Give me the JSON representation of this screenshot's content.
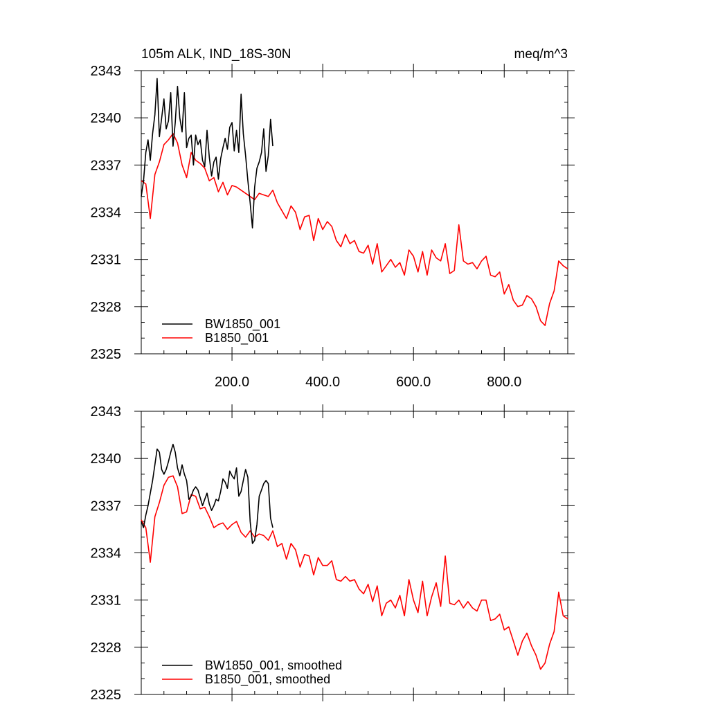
{
  "chart_data": [
    {
      "type": "line",
      "title_left": "105m ALK, IND_18S-30N",
      "title_right": "meq/m^3",
      "xlabel": "",
      "ylabel": "",
      "xlim": [
        0,
        940
      ],
      "ylim": [
        2325,
        2343
      ],
      "x_ticks": [
        200,
        400,
        600,
        800
      ],
      "x_tick_labels": [
        "200.0",
        "400.0",
        "600.0",
        "800.0"
      ],
      "y_ticks": [
        2325,
        2328,
        2331,
        2334,
        2337,
        2340,
        2343
      ],
      "y_tick_labels": [
        "2325",
        "2328",
        "2331",
        "2334",
        "2337",
        "2340",
        "2343"
      ],
      "legend_position": "bottom-left",
      "series": [
        {
          "name": "BW1850_001",
          "color": "#000000",
          "x": [
            0,
            5,
            10,
            15,
            20,
            25,
            30,
            35,
            40,
            45,
            50,
            55,
            60,
            65,
            70,
            75,
            80,
            85,
            90,
            95,
            100,
            105,
            110,
            115,
            120,
            125,
            130,
            135,
            140,
            145,
            150,
            155,
            160,
            165,
            170,
            175,
            180,
            185,
            190,
            195,
            200,
            205,
            210,
            215,
            220,
            225,
            230,
            235,
            240,
            245,
            250,
            255,
            260,
            265,
            270,
            275,
            280,
            285,
            290
          ],
          "values": [
            2335.0,
            2336.0,
            2337.8,
            2338.6,
            2337.3,
            2339.0,
            2340.2,
            2342.5,
            2338.8,
            2340.0,
            2341.2,
            2339.3,
            2339.8,
            2341.6,
            2338.2,
            2339.7,
            2342.0,
            2340.0,
            2339.1,
            2341.6,
            2338.1,
            2338.7,
            2338.9,
            2337.0,
            2338.9,
            2338.3,
            2338.6,
            2337.3,
            2336.9,
            2339.2,
            2337.5,
            2336.3,
            2337.2,
            2337.5,
            2336.1,
            2337.4,
            2338.1,
            2338.7,
            2338.0,
            2339.4,
            2339.7,
            2337.9,
            2339.2,
            2337.8,
            2341.5,
            2339.0,
            2337.6,
            2336.0,
            2334.6,
            2333.0,
            2335.6,
            2336.8,
            2337.2,
            2337.8,
            2339.3,
            2336.6,
            2337.6,
            2339.9,
            2338.2
          ]
        },
        {
          "name": "B1850_001",
          "color": "#ff0000",
          "x": [
            0,
            10,
            20,
            30,
            40,
            50,
            60,
            70,
            80,
            90,
            100,
            110,
            120,
            130,
            140,
            150,
            160,
            170,
            180,
            190,
            200,
            210,
            220,
            230,
            240,
            250,
            260,
            270,
            280,
            290,
            300,
            310,
            320,
            330,
            340,
            350,
            360,
            370,
            380,
            390,
            400,
            410,
            420,
            430,
            440,
            450,
            460,
            470,
            480,
            490,
            500,
            510,
            520,
            530,
            540,
            550,
            560,
            570,
            580,
            590,
            600,
            610,
            620,
            630,
            640,
            650,
            660,
            670,
            680,
            690,
            700,
            710,
            720,
            730,
            740,
            750,
            760,
            770,
            780,
            790,
            800,
            810,
            820,
            830,
            840,
            850,
            860,
            870,
            880,
            890,
            900,
            910,
            920,
            930,
            940
          ],
          "values": [
            2336.0,
            2335.8,
            2333.6,
            2336.4,
            2337.2,
            2338.3,
            2338.6,
            2339.0,
            2338.4,
            2337.0,
            2336.2,
            2337.8,
            2337.3,
            2337.1,
            2336.8,
            2336.0,
            2336.2,
            2335.3,
            2335.9,
            2335.1,
            2335.7,
            2335.6,
            2335.4,
            2335.2,
            2335.0,
            2334.8,
            2335.2,
            2335.1,
            2335.0,
            2335.4,
            2334.6,
            2334.1,
            2333.6,
            2334.4,
            2334.0,
            2332.9,
            2333.7,
            2333.8,
            2332.2,
            2333.6,
            2332.9,
            2333.4,
            2333.1,
            2332.2,
            2331.8,
            2332.6,
            2332.0,
            2332.2,
            2331.5,
            2331.4,
            2331.9,
            2330.7,
            2332.0,
            2330.2,
            2330.6,
            2331.0,
            2330.5,
            2330.8,
            2330.0,
            2331.6,
            2331.2,
            2330.2,
            2331.5,
            2330.0,
            2331.6,
            2331.1,
            2330.9,
            2332.0,
            2330.1,
            2330.3,
            2333.2,
            2330.9,
            2330.7,
            2330.8,
            2330.4,
            2330.9,
            2331.2,
            2330.0,
            2329.9,
            2330.2,
            2328.8,
            2329.4,
            2328.4,
            2328.0,
            2328.1,
            2328.7,
            2328.5,
            2328.0,
            2327.1,
            2326.8,
            2328.2,
            2329.0,
            2330.9,
            2330.6,
            2330.4
          ]
        }
      ]
    },
    {
      "type": "line",
      "xlabel": "",
      "ylabel": "",
      "xlim": [
        0,
        940
      ],
      "ylim": [
        2325,
        2343
      ],
      "y_ticks": [
        2325,
        2328,
        2331,
        2334,
        2337,
        2340,
        2343
      ],
      "y_tick_labels": [
        "2325",
        "2328",
        "2331",
        "2334",
        "2337",
        "2340",
        "2343"
      ],
      "legend_position": "bottom-left",
      "series": [
        {
          "name": "BW1850_001, smoothed",
          "color": "#000000",
          "x": [
            0,
            5,
            10,
            15,
            20,
            25,
            30,
            35,
            40,
            45,
            50,
            55,
            60,
            65,
            70,
            75,
            80,
            85,
            90,
            95,
            100,
            105,
            110,
            115,
            120,
            125,
            130,
            135,
            140,
            145,
            150,
            155,
            160,
            165,
            170,
            175,
            180,
            185,
            190,
            195,
            200,
            205,
            210,
            215,
            220,
            225,
            230,
            235,
            240,
            245,
            250,
            255,
            260,
            265,
            270,
            275,
            280,
            285,
            290
          ],
          "values": [
            2336.0,
            2335.6,
            2336.4,
            2337.0,
            2337.8,
            2338.6,
            2339.6,
            2340.6,
            2340.4,
            2339.3,
            2339.0,
            2339.3,
            2339.8,
            2340.4,
            2340.9,
            2340.4,
            2339.4,
            2338.9,
            2339.6,
            2339.0,
            2338.6,
            2337.4,
            2337.6,
            2338.0,
            2338.2,
            2338.0,
            2337.5,
            2337.0,
            2337.4,
            2337.8,
            2337.1,
            2336.7,
            2337.0,
            2337.4,
            2337.3,
            2337.9,
            2338.7,
            2338.5,
            2338.1,
            2339.2,
            2338.9,
            2338.7,
            2339.4,
            2337.6,
            2337.9,
            2338.6,
            2339.3,
            2338.8,
            2336.0,
            2334.6,
            2334.8,
            2335.8,
            2337.6,
            2338.0,
            2338.4,
            2338.6,
            2338.4,
            2336.2,
            2335.6
          ]
        },
        {
          "name": "B1850_001, smoothed",
          "color": "#ff0000",
          "x": [
            0,
            10,
            20,
            30,
            40,
            50,
            60,
            70,
            80,
            90,
            100,
            110,
            120,
            130,
            140,
            150,
            160,
            170,
            180,
            190,
            200,
            210,
            220,
            230,
            240,
            250,
            260,
            270,
            280,
            290,
            300,
            310,
            320,
            330,
            340,
            350,
            360,
            370,
            380,
            390,
            400,
            410,
            420,
            430,
            440,
            450,
            460,
            470,
            480,
            490,
            500,
            510,
            520,
            530,
            540,
            550,
            560,
            570,
            580,
            590,
            600,
            610,
            620,
            630,
            640,
            650,
            660,
            670,
            680,
            690,
            700,
            710,
            720,
            730,
            740,
            750,
            760,
            770,
            780,
            790,
            800,
            810,
            820,
            830,
            840,
            850,
            860,
            870,
            880,
            890,
            900,
            910,
            920,
            930,
            940
          ],
          "values": [
            2336.1,
            2335.6,
            2333.4,
            2336.3,
            2337.2,
            2338.3,
            2338.8,
            2338.9,
            2338.2,
            2336.5,
            2336.6,
            2337.7,
            2337.6,
            2336.8,
            2336.9,
            2336.3,
            2335.6,
            2335.8,
            2335.9,
            2335.5,
            2335.8,
            2336.0,
            2335.3,
            2335.0,
            2335.4,
            2335.0,
            2335.2,
            2335.1,
            2334.8,
            2335.4,
            2334.4,
            2334.6,
            2333.6,
            2334.6,
            2334.2,
            2333.1,
            2333.9,
            2333.8,
            2332.6,
            2333.7,
            2333.2,
            2333.2,
            2333.5,
            2332.3,
            2332.2,
            2332.5,
            2332.2,
            2332.3,
            2331.7,
            2331.4,
            2332.0,
            2330.9,
            2331.9,
            2330.0,
            2330.8,
            2331.0,
            2330.5,
            2331.3,
            2330.0,
            2332.3,
            2331.0,
            2330.2,
            2332.2,
            2330.0,
            2331.2,
            2332.1,
            2330.6,
            2333.8,
            2330.8,
            2330.7,
            2331.0,
            2330.5,
            2330.9,
            2330.5,
            2330.3,
            2331.0,
            2331.0,
            2329.7,
            2329.8,
            2330.1,
            2329.1,
            2329.3,
            2328.4,
            2327.5,
            2328.4,
            2328.9,
            2328.1,
            2327.5,
            2326.6,
            2327.0,
            2328.2,
            2329.0,
            2331.5,
            2330.0,
            2329.8
          ]
        }
      ]
    }
  ]
}
